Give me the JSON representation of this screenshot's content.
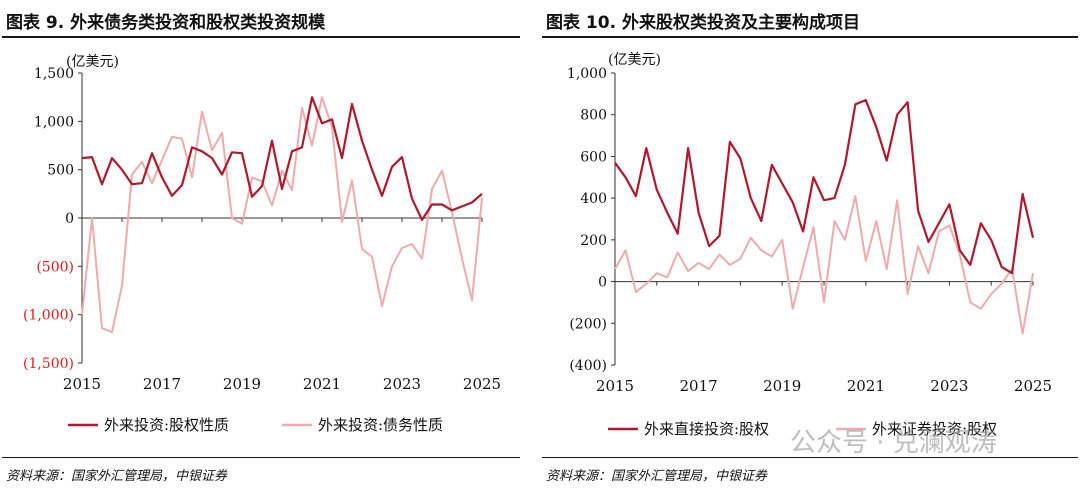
{
  "chart_data": [
    {
      "type": "line",
      "title": "图表 9. 外来债务类投资和股权类投资规模",
      "unit_label": "(亿美元)",
      "ylim": [
        -1500,
        1500
      ],
      "yticks": [
        1500,
        1000,
        500,
        0,
        -500,
        -1000,
        -1500
      ],
      "ytick_labels": [
        "1,500",
        "1,000",
        "500",
        "0",
        "(500)",
        "(1,000)",
        "(1,500)"
      ],
      "negative_tick_color": "#e8151b",
      "xlim": [
        2015,
        2025
      ],
      "xticks": [
        "2015",
        "2017",
        "2019",
        "2021",
        "2023",
        "2025"
      ],
      "legend_position": "bottom",
      "series": [
        {
          "name": "外来投资:股权性质",
          "color": "#b0182b",
          "values": [
            620,
            630,
            350,
            620,
            500,
            350,
            360,
            670,
            420,
            230,
            340,
            730,
            690,
            620,
            450,
            680,
            670,
            220,
            330,
            800,
            300,
            690,
            730,
            1250,
            980,
            1020,
            620,
            1180,
            800,
            500,
            230,
            530,
            630,
            200,
            -20,
            140,
            140,
            80,
            120,
            160,
            250
          ]
        },
        {
          "name": "外来投资:债务性质",
          "color": "#f0aaaa",
          "values": [
            -1000,
            0,
            -1140,
            -1180,
            -700,
            450,
            580,
            360,
            600,
            840,
            820,
            420,
            1100,
            700,
            880,
            0,
            -60,
            420,
            380,
            130,
            490,
            290,
            1140,
            750,
            1250,
            940,
            -40,
            390,
            -320,
            -400,
            -910,
            -500,
            -310,
            -270,
            -420,
            300,
            490,
            60,
            -420,
            -850,
            210
          ]
        }
      ],
      "source": "资料来源：国家外汇管理局，中银证券"
    },
    {
      "type": "line",
      "title": "图表 10. 外来股权类投资及主要构成项目",
      "unit_label": "(亿美元)",
      "ylim": [
        -400,
        1000
      ],
      "yticks": [
        1000,
        800,
        600,
        400,
        200,
        0,
        -200,
        -400
      ],
      "ytick_labels": [
        "1,000",
        "800",
        "600",
        "400",
        "200",
        "0",
        "(200)",
        "(400)"
      ],
      "negative_tick_color": "#111111",
      "xlim": [
        2015,
        2025
      ],
      "xticks": [
        "2015",
        "2017",
        "2019",
        "2021",
        "2023",
        "2025"
      ],
      "legend_position": "bottom",
      "series": [
        {
          "name": "外来直接投资:股权",
          "color": "#b0182b",
          "values": [
            570,
            500,
            410,
            640,
            440,
            330,
            230,
            640,
            330,
            170,
            220,
            670,
            590,
            400,
            290,
            560,
            470,
            380,
            240,
            500,
            390,
            400,
            560,
            850,
            870,
            740,
            580,
            800,
            860,
            340,
            190,
            280,
            370,
            150,
            80,
            280,
            200,
            70,
            40,
            420,
            210
          ]
        },
        {
          "name": "外来证券投资:股权",
          "color": "#f0aaaa",
          "values": [
            60,
            150,
            -50,
            -10,
            40,
            20,
            140,
            50,
            90,
            60,
            130,
            80,
            110,
            210,
            150,
            120,
            200,
            -130,
            70,
            260,
            -100,
            290,
            200,
            410,
            100,
            290,
            60,
            390,
            -60,
            170,
            40,
            240,
            270,
            130,
            -100,
            -130,
            -60,
            -10,
            60,
            -250,
            40
          ]
        }
      ],
      "source": "资料来源：国家外汇管理局，中银证券"
    }
  ],
  "watermark": "公众号 · 兑澜观涛"
}
